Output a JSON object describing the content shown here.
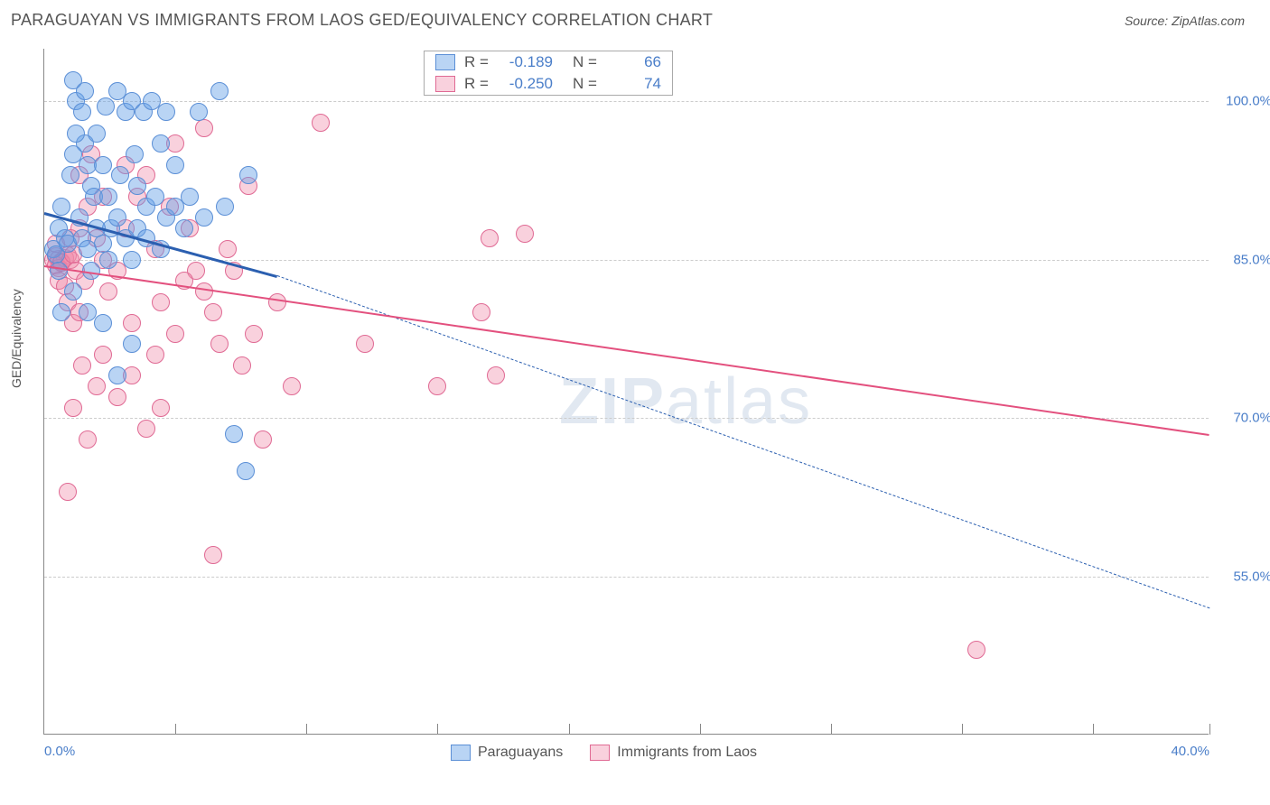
{
  "header": {
    "title": "PARAGUAYAN VS IMMIGRANTS FROM LAOS GED/EQUIVALENCY CORRELATION CHART",
    "source": "Source: ZipAtlas.com"
  },
  "axes": {
    "y_label": "GED/Equivalency",
    "x_range": [
      0,
      40
    ],
    "y_range": [
      40,
      105
    ],
    "y_ticks": [
      {
        "v": 100,
        "label": "100.0%"
      },
      {
        "v": 85,
        "label": "85.0%"
      },
      {
        "v": 70,
        "label": "70.0%"
      },
      {
        "v": 55,
        "label": "55.0%"
      }
    ],
    "x_ticks_major": [
      0,
      4.5,
      9,
      13.5,
      18,
      22.5,
      27,
      31.5,
      36,
      40
    ],
    "x_labels": [
      {
        "v": 0,
        "label": "0.0%"
      },
      {
        "v": 40,
        "label": "40.0%"
      }
    ],
    "grid_color": "#cccccc"
  },
  "watermark": {
    "a": "ZIP",
    "b": "atlas"
  },
  "series": {
    "blue": {
      "name": "Paraguayans",
      "fill": "rgba(100,160,230,0.45)",
      "stroke": "#5b8fd6",
      "line_color": "#2b5fb0",
      "R": "-0.189",
      "N": "66",
      "trend_solid": {
        "x1": 0,
        "y1": 89.5,
        "x2": 8,
        "y2": 83.5
      },
      "trend_dashed": {
        "x1": 8,
        "y1": 83.5,
        "x2": 40,
        "y2": 52
      },
      "points": [
        [
          0.3,
          86
        ],
        [
          0.4,
          85.5
        ],
        [
          0.5,
          88
        ],
        [
          0.6,
          90
        ],
        [
          0.7,
          87
        ],
        [
          0.5,
          84
        ],
        [
          0.8,
          86.5
        ],
        [
          1.0,
          102
        ],
        [
          1.1,
          100
        ],
        [
          1.3,
          99
        ],
        [
          1.4,
          96
        ],
        [
          1.5,
          94
        ],
        [
          1.6,
          92
        ],
        [
          1.7,
          91
        ],
        [
          1.2,
          89
        ],
        [
          1.3,
          87
        ],
        [
          0.9,
          93
        ],
        [
          1.0,
          95
        ],
        [
          1.1,
          97
        ],
        [
          1.4,
          101
        ],
        [
          1.8,
          97
        ],
        [
          2.0,
          94
        ],
        [
          2.1,
          99.5
        ],
        [
          2.2,
          91
        ],
        [
          2.3,
          88
        ],
        [
          2.5,
          101
        ],
        [
          2.6,
          93
        ],
        [
          2.8,
          99
        ],
        [
          3.0,
          100
        ],
        [
          3.1,
          95
        ],
        [
          3.2,
          92
        ],
        [
          3.4,
          99
        ],
        [
          3.5,
          90
        ],
        [
          3.7,
          100
        ],
        [
          1.5,
          86
        ],
        [
          1.6,
          84
        ],
        [
          1.8,
          88
        ],
        [
          2.0,
          86.5
        ],
        [
          2.2,
          85
        ],
        [
          2.5,
          89
        ],
        [
          2.8,
          87
        ],
        [
          3.0,
          85
        ],
        [
          3.2,
          88
        ],
        [
          3.5,
          87
        ],
        [
          3.8,
          91
        ],
        [
          4.0,
          86
        ],
        [
          4.2,
          89
        ],
        [
          4.5,
          90
        ],
        [
          4.8,
          88
        ],
        [
          4.0,
          96
        ],
        [
          4.2,
          99
        ],
        [
          4.5,
          94
        ],
        [
          5.0,
          91
        ],
        [
          5.3,
          99
        ],
        [
          5.5,
          89
        ],
        [
          6.0,
          101
        ],
        [
          6.2,
          90
        ],
        [
          7.0,
          93
        ],
        [
          3.0,
          77
        ],
        [
          2.5,
          74
        ],
        [
          6.5,
          68.5
        ],
        [
          6.9,
          65
        ],
        [
          1.0,
          82
        ],
        [
          1.5,
          80
        ],
        [
          2.0,
          79
        ],
        [
          0.6,
          80
        ]
      ]
    },
    "pink": {
      "name": "Immigrants from Laos",
      "fill": "rgba(240,140,170,0.40)",
      "stroke": "#e06a94",
      "line_color": "#e3507e",
      "R": "-0.250",
      "N": "74",
      "trend_solid": {
        "x1": 0,
        "y1": 84.5,
        "x2": 40,
        "y2": 68.5
      },
      "points": [
        [
          0.3,
          85
        ],
        [
          0.4,
          85.3
        ],
        [
          0.5,
          85.1
        ],
        [
          0.6,
          84.8
        ],
        [
          0.7,
          85.2
        ],
        [
          0.8,
          85.4
        ],
        [
          0.4,
          84.5
        ],
        [
          0.5,
          84.2
        ],
        [
          0.6,
          84.7
        ],
        [
          0.9,
          85
        ],
        [
          1.0,
          85.5
        ],
        [
          1.1,
          84
        ],
        [
          0.5,
          83
        ],
        [
          0.7,
          82.5
        ],
        [
          0.8,
          81
        ],
        [
          1.0,
          79
        ],
        [
          1.2,
          80
        ],
        [
          1.4,
          83
        ],
        [
          1.2,
          88
        ],
        [
          1.5,
          90
        ],
        [
          1.8,
          87
        ],
        [
          2.0,
          85
        ],
        [
          2.2,
          82
        ],
        [
          2.5,
          84
        ],
        [
          2.8,
          88
        ],
        [
          3.0,
          79
        ],
        [
          3.2,
          91
        ],
        [
          3.5,
          93
        ],
        [
          3.8,
          86
        ],
        [
          4.0,
          81
        ],
        [
          4.3,
          90
        ],
        [
          4.5,
          96
        ],
        [
          5.0,
          88
        ],
        [
          5.2,
          84
        ],
        [
          5.5,
          97.5
        ],
        [
          5.8,
          80
        ],
        [
          6.0,
          77
        ],
        [
          6.3,
          86
        ],
        [
          6.8,
          75
        ],
        [
          7.0,
          92
        ],
        [
          7.2,
          78
        ],
        [
          7.5,
          68
        ],
        [
          8.0,
          81
        ],
        [
          8.5,
          73
        ],
        [
          5.8,
          57
        ],
        [
          2.0,
          76
        ],
        [
          2.5,
          72
        ],
        [
          3.0,
          74
        ],
        [
          3.5,
          69
        ],
        [
          4.0,
          71
        ],
        [
          1.3,
          75
        ],
        [
          1.8,
          73
        ],
        [
          1.0,
          71
        ],
        [
          1.5,
          68
        ],
        [
          0.8,
          63
        ],
        [
          3.8,
          76
        ],
        [
          4.5,
          78
        ],
        [
          9.5,
          98
        ],
        [
          13.5,
          73
        ],
        [
          15.0,
          80
        ],
        [
          15.3,
          87
        ],
        [
          16.5,
          87.5
        ],
        [
          15.5,
          74
        ],
        [
          11.0,
          77
        ],
        [
          32.0,
          48
        ],
        [
          1.2,
          93
        ],
        [
          1.6,
          95
        ],
        [
          2.8,
          94
        ],
        [
          2.0,
          91
        ],
        [
          0.4,
          86.5
        ],
        [
          0.9,
          87
        ],
        [
          4.8,
          83
        ],
        [
          5.5,
          82
        ],
        [
          6.5,
          84
        ]
      ]
    }
  }
}
